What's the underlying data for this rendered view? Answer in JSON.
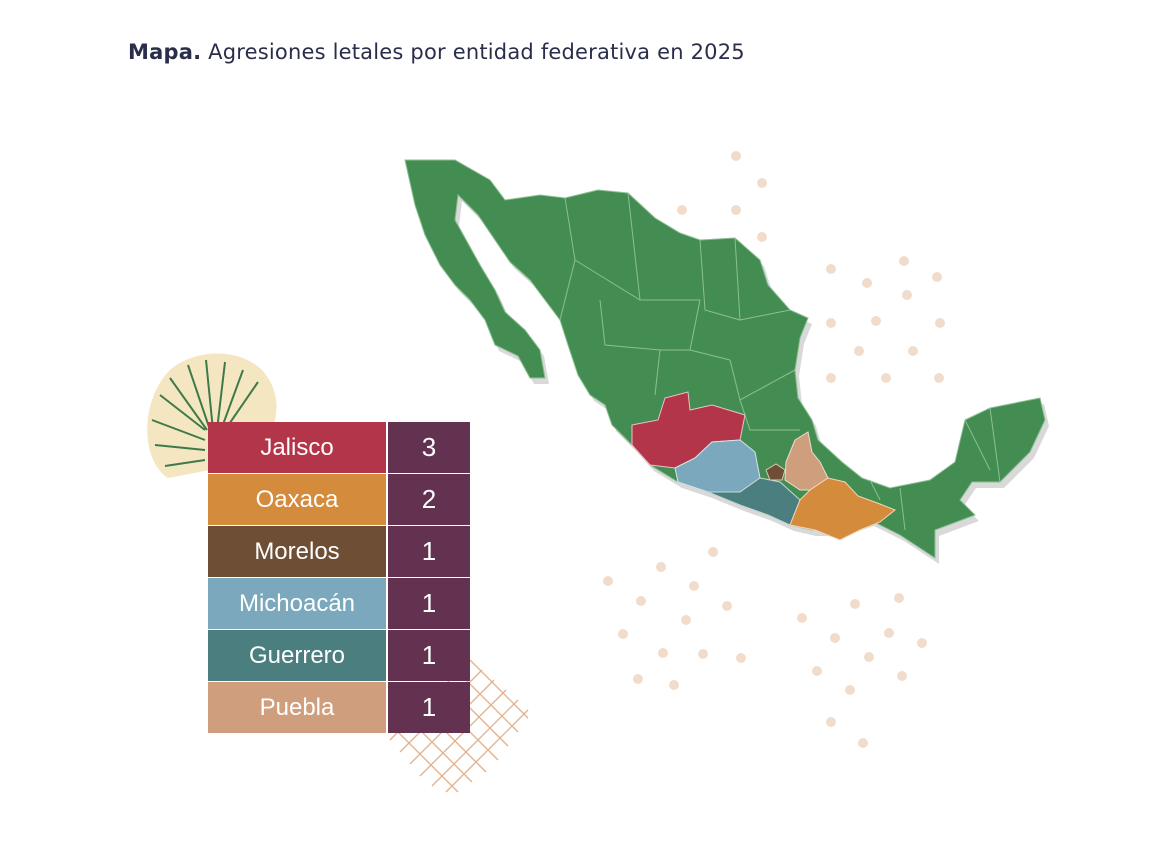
{
  "title": {
    "bold": "Mapa.",
    "rest": "Agresiones letales por entidad federativa en 2025"
  },
  "colors": {
    "base_state": "#438d52",
    "jalisco": "#b3354a",
    "oaxaca": "#d48b3c",
    "morelos": "#6e4e35",
    "michoacan": "#7ca8bd",
    "guerrero": "#4a7e7f",
    "puebla": "#cf9e7d",
    "count_bg": "#633251"
  },
  "legend": [
    {
      "state": "Jalisco",
      "count": "3",
      "color": "#b3354a"
    },
    {
      "state": "Oaxaca",
      "count": "2",
      "color": "#d48b3c"
    },
    {
      "state": "Morelos",
      "count": "1",
      "color": "#6e4e35"
    },
    {
      "state": "Michoacán",
      "count": "1",
      "color": "#7ca8bd"
    },
    {
      "state": "Guerrero",
      "count": "1",
      "color": "#4a7e7f"
    },
    {
      "state": "Puebla",
      "count": "1",
      "color": "#cf9e7d"
    }
  ]
}
